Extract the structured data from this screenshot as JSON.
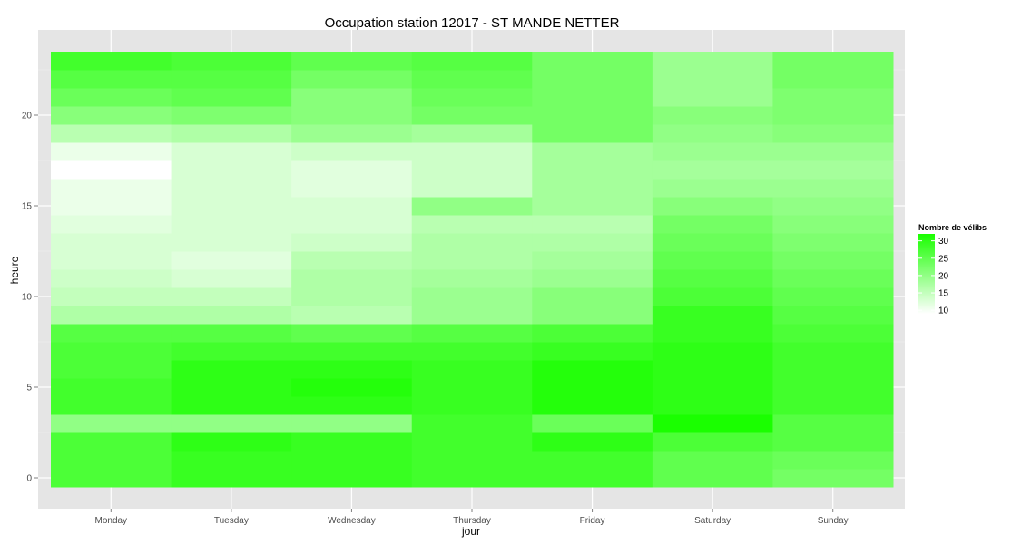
{
  "chart_data": {
    "type": "heatmap",
    "title": "Occupation station 12017 - ST MANDE NETTER",
    "xlabel": "jour",
    "ylabel": "heure",
    "x_categories": [
      "Monday",
      "Tuesday",
      "Wednesday",
      "Thursday",
      "Friday",
      "Saturday",
      "Sunday"
    ],
    "y_range": [
      0,
      23
    ],
    "y_ticks": [
      0,
      5,
      10,
      15,
      20
    ],
    "grid": true,
    "legend": {
      "title": "Nombre de vélibs",
      "position": "right",
      "ticks": [
        30,
        25,
        20,
        15,
        10
      ],
      "min": 9,
      "max": 32,
      "low_color": "#ffffff",
      "high_color": "#1aff00"
    },
    "value_description": "rows are hours 0..23, columns are days Monday..Sunday",
    "values": [
      [
        27,
        29,
        29,
        28,
        28,
        25,
        23
      ],
      [
        27,
        29,
        29,
        28,
        28,
        25,
        24
      ],
      [
        27,
        30,
        29,
        28,
        30,
        27,
        26
      ],
      [
        20,
        20,
        20,
        28,
        24,
        32,
        26
      ],
      [
        28,
        30,
        30,
        29,
        31,
        30,
        28
      ],
      [
        28,
        30,
        31,
        29,
        31,
        30,
        28
      ],
      [
        27,
        30,
        30,
        29,
        31,
        30,
        28
      ],
      [
        27,
        28,
        28,
        28,
        29,
        30,
        28
      ],
      [
        26,
        26,
        25,
        26,
        27,
        29,
        27
      ],
      [
        17,
        17,
        16,
        19,
        21,
        29,
        26
      ],
      [
        15,
        15,
        17,
        19,
        21,
        27,
        25
      ],
      [
        14,
        13,
        17,
        18,
        19,
        26,
        24
      ],
      [
        13,
        12,
        16,
        17,
        18,
        25,
        23
      ],
      [
        13,
        13,
        14,
        17,
        17,
        24,
        22
      ],
      [
        12,
        13,
        13,
        16,
        16,
        23,
        21
      ],
      [
        11,
        13,
        13,
        20,
        18,
        21,
        20
      ],
      [
        11,
        13,
        12,
        14,
        18,
        19,
        19
      ],
      [
        9,
        13,
        12,
        14,
        18,
        18,
        18
      ],
      [
        11,
        13,
        14,
        14,
        18,
        19,
        19
      ],
      [
        16,
        17,
        19,
        18,
        23,
        20,
        21
      ],
      [
        21,
        22,
        21,
        23,
        23,
        21,
        22
      ],
      [
        24,
        25,
        21,
        24,
        23,
        19,
        22
      ],
      [
        26,
        26,
        23,
        25,
        23,
        19,
        23
      ],
      [
        28,
        27,
        25,
        26,
        23,
        19,
        23
      ]
    ]
  }
}
